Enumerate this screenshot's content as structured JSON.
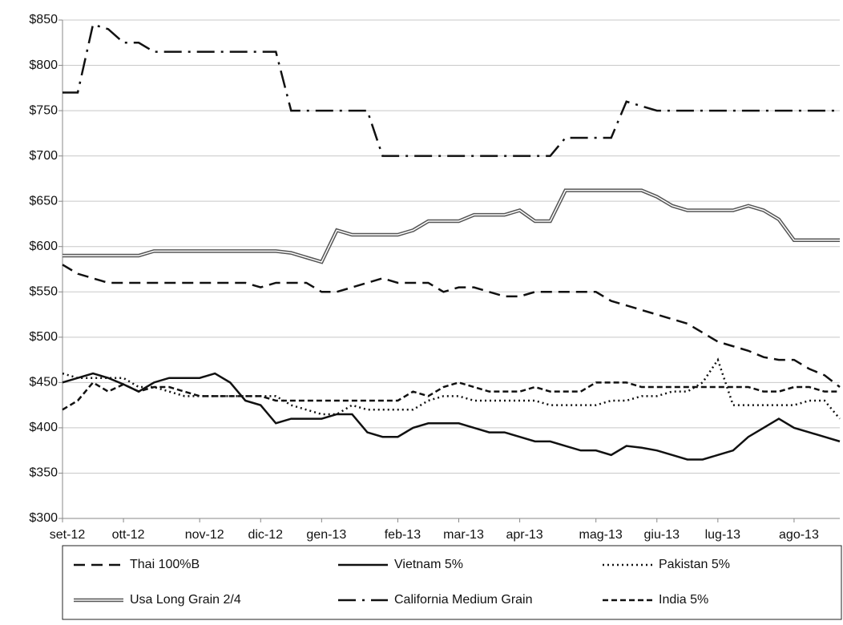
{
  "chart_data": {
    "type": "line",
    "categories": [
      "set-12",
      null,
      null,
      null,
      "ott-12",
      null,
      null,
      null,
      null,
      "nov-12",
      null,
      null,
      null,
      "dic-12",
      null,
      null,
      null,
      "gen-13",
      null,
      null,
      null,
      null,
      "feb-13",
      null,
      null,
      null,
      "mar-13",
      null,
      null,
      null,
      "apr-13",
      null,
      null,
      null,
      null,
      "mag-13",
      null,
      null,
      null,
      "giu-13",
      null,
      null,
      null,
      "lug-13",
      null,
      null,
      null,
      null,
      "ago-13",
      null,
      null,
      null
    ],
    "series": [
      {
        "name": "Thai 100%B",
        "color": "#111111",
        "dash": "14,8",
        "values": [
          580,
          570,
          565,
          560,
          560,
          560,
          560,
          560,
          560,
          560,
          560,
          560,
          560,
          555,
          560,
          560,
          560,
          550,
          550,
          555,
          560,
          565,
          560,
          560,
          560,
          550,
          555,
          555,
          550,
          545,
          545,
          550,
          550,
          550,
          550,
          550,
          540,
          535,
          530,
          525,
          520,
          515,
          505,
          495,
          490,
          485,
          478,
          475,
          475,
          465,
          458,
          445
        ]
      },
      {
        "name": "Vietnam 5%",
        "color": "#111111",
        "dash": "none",
        "values": [
          450,
          455,
          460,
          455,
          448,
          440,
          450,
          455,
          455,
          455,
          460,
          450,
          430,
          425,
          405,
          410,
          410,
          410,
          415,
          415,
          395,
          390,
          390,
          400,
          405,
          405,
          405,
          400,
          395,
          395,
          390,
          385,
          385,
          380,
          375,
          375,
          370,
          380,
          378,
          375,
          370,
          365,
          365,
          370,
          375,
          390,
          400,
          410,
          400,
          395,
          390,
          385
        ]
      },
      {
        "name": "Pakistan 5%",
        "color": "#111111",
        "dash": "2,4",
        "values": [
          460,
          455,
          455,
          455,
          455,
          445,
          445,
          440,
          435,
          435,
          435,
          435,
          435,
          435,
          435,
          425,
          420,
          415,
          415,
          425,
          420,
          420,
          420,
          420,
          430,
          435,
          435,
          430,
          430,
          430,
          430,
          430,
          425,
          425,
          425,
          425,
          430,
          430,
          435,
          435,
          440,
          440,
          450,
          475,
          425,
          425,
          425,
          425,
          425,
          430,
          430,
          410
        ]
      },
      {
        "name": "Usa Long Grain 2/4",
        "color": "#555555",
        "line_style": "double",
        "dash": "none",
        "values": [
          590,
          590,
          590,
          590,
          590,
          590,
          595,
          595,
          595,
          595,
          595,
          595,
          595,
          595,
          595,
          593,
          588,
          583,
          618,
          613,
          613,
          613,
          613,
          618,
          628,
          628,
          628,
          635,
          635,
          635,
          640,
          628,
          628,
          662,
          662,
          662,
          662,
          662,
          662,
          655,
          645,
          640,
          640,
          640,
          640,
          645,
          640,
          630,
          607,
          607,
          607,
          607
        ]
      },
      {
        "name": "California Medium Grain",
        "color": "#111111",
        "dash": "22,8,3,8",
        "values": [
          770,
          770,
          845,
          840,
          825,
          825,
          815,
          815,
          815,
          815,
          815,
          815,
          815,
          815,
          815,
          750,
          750,
          750,
          750,
          750,
          750,
          700,
          700,
          700,
          700,
          700,
          700,
          700,
          700,
          700,
          700,
          700,
          700,
          720,
          720,
          720,
          720,
          760,
          755,
          750,
          750,
          750,
          750,
          750,
          750,
          750,
          750,
          750,
          750,
          750,
          750,
          750
        ]
      },
      {
        "name": "India 5%",
        "color": "#111111",
        "dash": "7,4",
        "values": [
          420,
          430,
          450,
          440,
          448,
          440,
          445,
          445,
          440,
          435,
          435,
          435,
          435,
          435,
          430,
          430,
          430,
          430,
          430,
          430,
          430,
          430,
          430,
          440,
          435,
          445,
          450,
          445,
          440,
          440,
          440,
          445,
          440,
          440,
          440,
          450,
          450,
          450,
          445,
          445,
          445,
          445,
          445,
          445,
          445,
          445,
          440,
          440,
          445,
          445,
          440,
          440
        ]
      }
    ],
    "ylim": [
      300,
      850
    ],
    "yticks": [
      {
        "value": 300,
        "label": "$300"
      },
      {
        "value": 350,
        "label": "$350"
      },
      {
        "value": 400,
        "label": "$400"
      },
      {
        "value": 450,
        "label": "$450"
      },
      {
        "value": 500,
        "label": "$500"
      },
      {
        "value": 550,
        "label": "$550"
      },
      {
        "value": 600,
        "label": "$600"
      },
      {
        "value": 650,
        "label": "$650"
      },
      {
        "value": 700,
        "label": "$700"
      },
      {
        "value": 750,
        "label": "$750"
      },
      {
        "value": 800,
        "label": "$800"
      },
      {
        "value": 850,
        "label": "$850"
      }
    ],
    "grid": true,
    "legend": "bottom"
  }
}
